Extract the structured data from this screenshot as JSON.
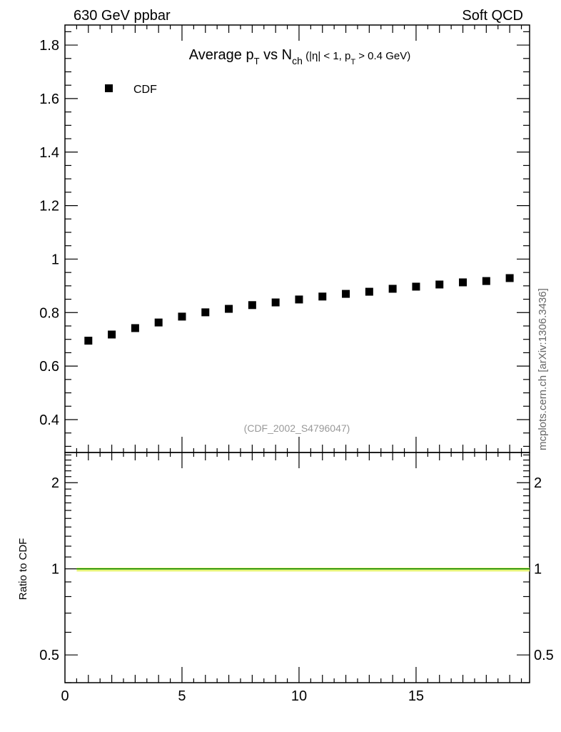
{
  "header": {
    "left": "630 GeV ppbar",
    "right": "Soft QCD"
  },
  "side_label": "mcplots.cern.ch [arXiv:1306.3436]",
  "analysis_id": "(CDF_2002_S4796047)",
  "chart_data": [
    {
      "type": "scatter",
      "title": "Average p_T vs N_ch (|η| < 1, p_T > 0.4 GeV)",
      "title_parts": {
        "a": "Average p",
        "a_sub": "T",
        "b": " vs N",
        "b_sub": "ch",
        "c": " (|η| < 1, p",
        "c_sub": "T",
        "d": " > 0.4 GeV)"
      },
      "legend": [
        {
          "name": "CDF",
          "marker": "square",
          "color": "#000000"
        }
      ],
      "legend_position": "top-left",
      "xlim": [
        0,
        19.85
      ],
      "ylim": [
        0.277,
        1.875
      ],
      "yticks": [
        0.4,
        0.6,
        0.8,
        1.0,
        1.2,
        1.4,
        1.6,
        1.8
      ],
      "ytick_labels": [
        "0.4",
        "0.6",
        "0.8",
        "1",
        "1.2",
        "1.4",
        "1.6",
        "1.8"
      ],
      "series": [
        {
          "name": "CDF",
          "x": [
            1,
            2,
            3,
            4,
            5,
            6,
            7,
            8,
            9,
            10,
            11,
            12,
            13,
            14,
            15,
            16,
            17,
            18,
            19
          ],
          "y": [
            0.695,
            0.718,
            0.742,
            0.763,
            0.785,
            0.801,
            0.814,
            0.828,
            0.838,
            0.849,
            0.86,
            0.87,
            0.878,
            0.889,
            0.897,
            0.905,
            0.913,
            0.918,
            0.929
          ]
        }
      ]
    },
    {
      "type": "line",
      "ylabel": "Ratio to CDF",
      "yscale": "log",
      "xlim": [
        0,
        19.85
      ],
      "ylim": [
        0.4,
        2.55
      ],
      "yticks": [
        0.5,
        1,
        2
      ],
      "ytick_labels": [
        "0.5",
        "1",
        "2"
      ],
      "xticks": [
        0,
        5,
        10,
        15
      ],
      "xtick_labels": [
        "0",
        "5",
        "10",
        "15"
      ],
      "ratio_line": {
        "x_range": [
          0.5,
          19.85
        ],
        "value": 1.0,
        "line_color": "#008000",
        "band_color": "#e8f57a",
        "band_halfwidth": 0.01
      }
    }
  ]
}
